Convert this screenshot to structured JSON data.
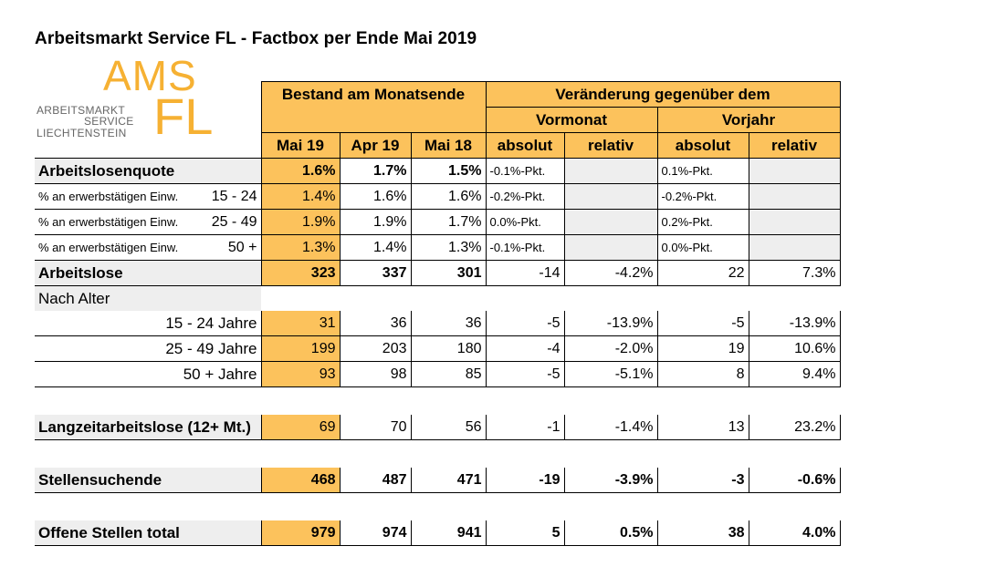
{
  "title": "Arbeitsmarkt Service FL - Factbox per Ende Mai 2019",
  "logo": {
    "ams": "AMS",
    "fl": "FL",
    "line1": "ARBEITSMARKT",
    "line2": "SERVICE",
    "line3": "LIECHTENSTEIN"
  },
  "headers": {
    "bestand": "Bestand am Monatsende",
    "veraenderung": "Veränderung gegenüber dem",
    "vormonat": "Vormonat",
    "vorjahr": "Vorjahr",
    "mai19": "Mai 19",
    "apr19": "Apr 19",
    "mai18": "Mai 18",
    "absolut": "absolut",
    "relativ": "relativ"
  },
  "quote": {
    "label": "Arbeitslosenquote",
    "mai19": "1.6%",
    "apr19": "1.7%",
    "mai18": "1.5%",
    "vm_abs": "-0.1%-Pkt.",
    "vj_abs": "0.1%-Pkt."
  },
  "quote_rows": [
    {
      "label": "% an erwerbstätigen Einw.",
      "age": "15 - 24",
      "mai19": "1.4%",
      "apr19": "1.6%",
      "mai18": "1.6%",
      "vm_abs": "-0.2%-Pkt.",
      "vj_abs": "-0.2%-Pkt."
    },
    {
      "label": "% an erwerbstätigen Einw.",
      "age": "25 - 49",
      "mai19": "1.9%",
      "apr19": "1.9%",
      "mai18": "1.7%",
      "vm_abs": "0.0%-Pkt.",
      "vj_abs": "0.2%-Pkt."
    },
    {
      "label": "% an erwerbstätigen Einw.",
      "age": "50 +",
      "mai19": "1.3%",
      "apr19": "1.4%",
      "mai18": "1.3%",
      "vm_abs": "-0.1%-Pkt.",
      "vj_abs": "0.0%-Pkt."
    }
  ],
  "arbeitslose": {
    "label": "Arbeitslose",
    "mai19": "323",
    "apr19": "337",
    "mai18": "301",
    "vm_abs": "-14",
    "vm_rel": "-4.2%",
    "vj_abs": "22",
    "vj_rel": "7.3%"
  },
  "nach_alter": "Nach Alter",
  "alter_rows": [
    {
      "label": "15 - 24 Jahre",
      "mai19": "31",
      "apr19": "36",
      "mai18": "36",
      "vm_abs": "-5",
      "vm_rel": "-13.9%",
      "vj_abs": "-5",
      "vj_rel": "-13.9%"
    },
    {
      "label": "25 - 49 Jahre",
      "mai19": "199",
      "apr19": "203",
      "mai18": "180",
      "vm_abs": "-4",
      "vm_rel": "-2.0%",
      "vj_abs": "19",
      "vj_rel": "10.6%"
    },
    {
      "label": "50 + Jahre",
      "mai19": "93",
      "apr19": "98",
      "mai18": "85",
      "vm_abs": "-5",
      "vm_rel": "-5.1%",
      "vj_abs": "8",
      "vj_rel": "9.4%"
    }
  ],
  "langzeit": {
    "label": "Langzeitarbeitslose (12+ Mt.)",
    "mai19": "69",
    "apr19": "70",
    "mai18": "56",
    "vm_abs": "-1",
    "vm_rel": "-1.4%",
    "vj_abs": "13",
    "vj_rel": "23.2%"
  },
  "stellensuchende": {
    "label": "Stellensuchende",
    "mai19": "468",
    "apr19": "487",
    "mai18": "471",
    "vm_abs": "-19",
    "vm_rel": "-3.9%",
    "vj_abs": "-3",
    "vj_rel": "-0.6%"
  },
  "offene": {
    "label": "Offene Stellen total",
    "mai19": "979",
    "apr19": "974",
    "mai18": "941",
    "vm_abs": "5",
    "vm_rel": "0.5%",
    "vj_abs": "38",
    "vj_rel": "4.0%"
  },
  "colors": {
    "orange": "#fcc25c",
    "logo_orange": "#f6b133",
    "gray": "#eeeeee"
  }
}
